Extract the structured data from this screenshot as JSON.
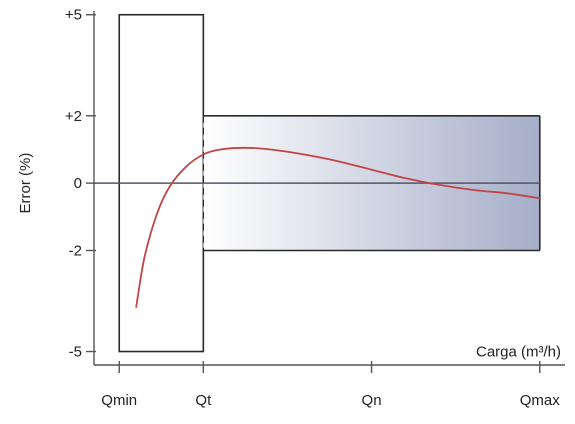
{
  "chart_data": {
    "type": "line",
    "ylabel": "Error (%)",
    "xlabel": "Carga (m³/h)",
    "x_ticks": [
      "Qmin",
      "Qt",
      "Qn",
      "Qmax"
    ],
    "x_tick_positions": [
      0,
      1,
      3,
      5
    ],
    "y_ticks": [
      "+5",
      "+2",
      "0",
      "-2",
      "-5"
    ],
    "y_tick_values": [
      5,
      2,
      0,
      -2,
      -5
    ],
    "xlim": [
      -0.3,
      5.3
    ],
    "ylim": [
      -5.4,
      5.2
    ],
    "grid": false,
    "error_limit_zones": [
      {
        "x_start": 0,
        "x_end": 1,
        "lower": -5,
        "upper": 5
      },
      {
        "x_start": 1,
        "x_end": 5,
        "lower": -2,
        "upper": 2
      }
    ],
    "series": [
      {
        "x": [
          0.2,
          0.3,
          0.45,
          0.6,
          0.8,
          1.0,
          1.2,
          1.5,
          1.8,
          2.2,
          2.6,
          3.0,
          3.4,
          3.8,
          4.2,
          4.6,
          5.0
        ],
        "y": [
          -3.7,
          -2.2,
          -0.9,
          -0.1,
          0.5,
          0.85,
          1.0,
          1.05,
          1.0,
          0.85,
          0.65,
          0.4,
          0.15,
          -0.05,
          -0.2,
          -0.3,
          -0.45
        ],
        "color": "#c24545"
      }
    ],
    "colors": {
      "axis": "#555555",
      "zone_border": "#2a2a2a",
      "zero_line": "#555566",
      "gradient_start": "#ffffff",
      "gradient_end": "#a6aec9",
      "curve": "#c24545"
    }
  }
}
